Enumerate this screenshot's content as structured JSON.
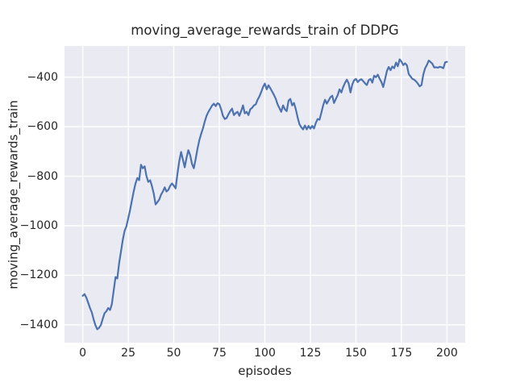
{
  "figure": {
    "background": "#ffffff"
  },
  "chart_data": {
    "type": "line",
    "title": "moving_average_rewards_train of DDPG",
    "xlabel": "episodes",
    "ylabel": "moving_average_rewards_train",
    "style": "seaborn-darkgrid",
    "plot_background": "#eaeaf2",
    "grid_color": "#ffffff",
    "grid": true,
    "legend": false,
    "text_color": "#262626",
    "xlim": [
      -10,
      210
    ],
    "ylim": [
      -1472,
      -274
    ],
    "x_tick_values": [
      0,
      25,
      50,
      75,
      100,
      125,
      150,
      175,
      200
    ],
    "x_tick_labels": [
      "0",
      "25",
      "50",
      "75",
      "100",
      "125",
      "150",
      "175",
      "200"
    ],
    "y_tick_values": [
      -400,
      -600,
      -800,
      -1000,
      -1200,
      -1400
    ],
    "y_tick_labels": [
      "−400",
      "−600",
      "−800",
      "−1000",
      "−1200",
      "−1400"
    ],
    "series": [
      {
        "name": "moving_average_rewards_train (DDPG)",
        "color": "#4c72b0",
        "x_start": 0,
        "x_step": 1,
        "values": [
          -1283,
          -1276,
          -1290,
          -1311,
          -1332,
          -1350,
          -1378,
          -1402,
          -1418,
          -1412,
          -1400,
          -1376,
          -1353,
          -1345,
          -1332,
          -1340,
          -1317,
          -1262,
          -1207,
          -1213,
          -1150,
          -1105,
          -1057,
          -1020,
          -1002,
          -969,
          -937,
          -898,
          -862,
          -829,
          -807,
          -816,
          -754,
          -768,
          -760,
          -800,
          -823,
          -816,
          -839,
          -870,
          -914,
          -905,
          -894,
          -875,
          -862,
          -845,
          -862,
          -855,
          -839,
          -829,
          -838,
          -849,
          -790,
          -740,
          -702,
          -732,
          -764,
          -725,
          -695,
          -715,
          -750,
          -768,
          -730,
          -690,
          -655,
          -630,
          -607,
          -580,
          -556,
          -540,
          -528,
          -515,
          -507,
          -517,
          -505,
          -509,
          -530,
          -556,
          -569,
          -565,
          -550,
          -537,
          -527,
          -553,
          -545,
          -540,
          -556,
          -537,
          -514,
          -546,
          -540,
          -553,
          -530,
          -524,
          -514,
          -510,
          -491,
          -478,
          -460,
          -440,
          -426,
          -449,
          -433,
          -445,
          -458,
          -472,
          -488,
          -510,
          -525,
          -540,
          -514,
          -530,
          -537,
          -495,
          -488,
          -514,
          -504,
          -530,
          -563,
          -590,
          -602,
          -611,
          -595,
          -611,
          -597,
          -608,
          -597,
          -607,
          -584,
          -569,
          -572,
          -545,
          -514,
          -491,
          -507,
          -494,
          -481,
          -475,
          -504,
          -488,
          -472,
          -449,
          -462,
          -440,
          -423,
          -410,
          -425,
          -462,
          -430,
          -412,
          -407,
          -420,
          -412,
          -408,
          -416,
          -425,
          -432,
          -412,
          -407,
          -422,
          -394,
          -400,
          -390,
          -406,
          -420,
          -440,
          -408,
          -375,
          -359,
          -372,
          -357,
          -364,
          -341,
          -356,
          -328,
          -337,
          -351,
          -344,
          -352,
          -388,
          -397,
          -407,
          -410,
          -417,
          -426,
          -437,
          -432,
          -390,
          -364,
          -350,
          -333,
          -339,
          -346,
          -361,
          -360,
          -362,
          -358,
          -360,
          -364,
          -340,
          -338
        ]
      }
    ]
  }
}
